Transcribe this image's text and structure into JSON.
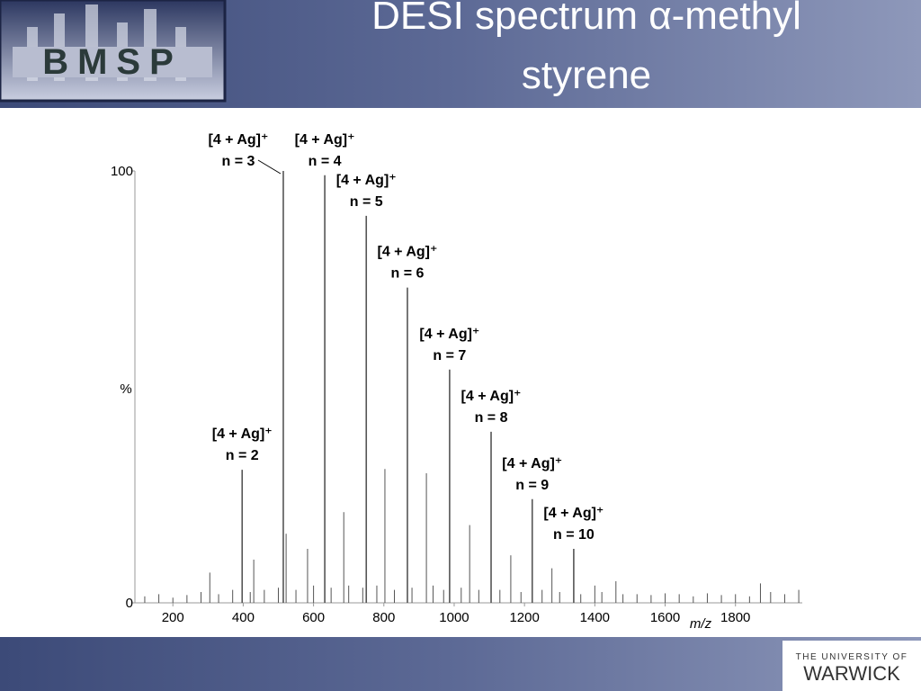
{
  "header": {
    "title_lines": [
      "DESI spectrum α-methyl",
      "styrene"
    ],
    "logo": "BMSP"
  },
  "footer": {
    "line1": "THE UNIVERSITY OF",
    "line2": "WARWICK"
  },
  "chart_data": {
    "type": "spectrum",
    "xlabel": "m/z",
    "ylabel": "%",
    "xlim": [
      92,
      1990
    ],
    "ylim": [
      0,
      100
    ],
    "xticks": [
      200,
      400,
      600,
      800,
      1000,
      1200,
      1400,
      1600,
      1800
    ],
    "yticks": [
      0,
      100
    ],
    "color": "#555555",
    "series": [
      {
        "x": [
          397,
          514,
          632,
          750,
          867,
          987,
          1105,
          1222,
          1340
        ],
        "values": [
          30.8,
          100,
          99,
          89.6,
          73,
          54,
          39.6,
          24,
          12.5
        ],
        "peak_labels": [
          [
            "[4 + Ag]⁺",
            "n = 2"
          ],
          [
            "[4 + Ag]⁺",
            "n = 3"
          ],
          [
            "[4 + Ag]⁺",
            "n = 4"
          ],
          [
            "[4 + Ag]⁺",
            "n = 5"
          ],
          [
            "[4 + Ag]⁺",
            "n = 6"
          ],
          [
            "[4 + Ag]⁺",
            "n = 7"
          ],
          [
            "[4 + Ag]⁺",
            "n = 8"
          ],
          [
            "[4 + Ag]⁺",
            "n = 9"
          ],
          [
            "[4 + Ag]⁺",
            "n = 10"
          ]
        ]
      },
      {
        "x": [
          305,
          430,
          522,
          583,
          686,
          803,
          921,
          1044,
          1161,
          1278,
          1400,
          1460,
          1871
        ],
        "values": [
          7,
          10,
          16,
          12.5,
          21,
          31,
          30,
          18,
          11,
          8,
          4,
          5,
          4.5
        ]
      },
      {
        "x": [
          120,
          160,
          200,
          240,
          280,
          330,
          370,
          420,
          460,
          500,
          550,
          600,
          650,
          700,
          740,
          780,
          830,
          880,
          940,
          970,
          1020,
          1070,
          1130,
          1190,
          1250,
          1300,
          1360,
          1420,
          1480,
          1520,
          1560,
          1600,
          1640,
          1680,
          1720,
          1760,
          1800,
          1840,
          1900,
          1940,
          1980
        ],
        "values": [
          1.5,
          2,
          1.2,
          1.8,
          2.5,
          2,
          3,
          2.5,
          3,
          3.5,
          3,
          4,
          3.5,
          4,
          3.5,
          4,
          3,
          3.5,
          4,
          3,
          3.5,
          3,
          3,
          2.5,
          3,
          2.5,
          2,
          2.5,
          2,
          2,
          1.8,
          2.2,
          2,
          1.5,
          2.2,
          1.8,
          2,
          1.5,
          2.5,
          2,
          3
        ]
      }
    ]
  }
}
